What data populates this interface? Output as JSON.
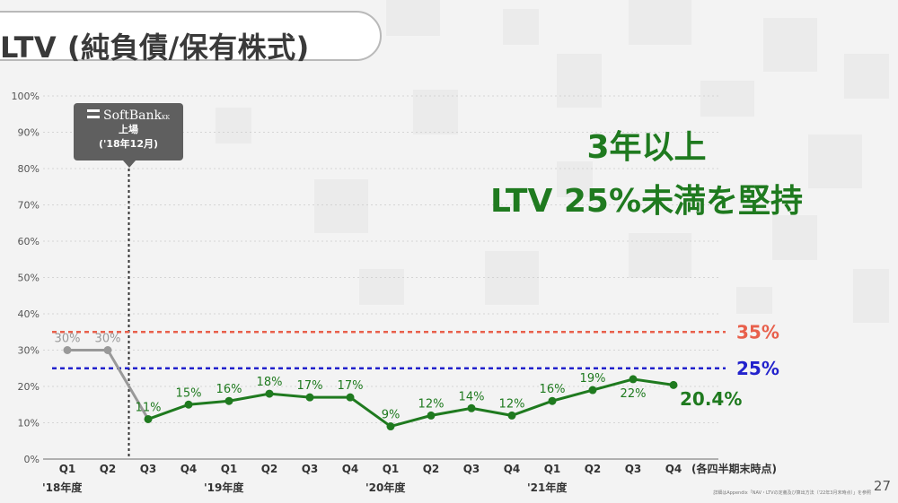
{
  "title": "LTV (純負債/保有株式)",
  "headline": {
    "line1": "3年以上",
    "line2": "LTV 25%未満を堅持"
  },
  "callout": {
    "logo": "SoftBank",
    "logo_suffix": "KK",
    "line1": "上場",
    "line2": "('18年12月)"
  },
  "page_number": "27",
  "footnote": "詳細はAppendix「NAV・LTVの定義及び算出方法（'22年3月末時点）」を参照",
  "colors": {
    "series": "#1f7a1f",
    "pre_listing": "#999999",
    "ref35": "#e8604c",
    "ref25": "#2222cc",
    "grid": "#cccccc",
    "axis": "#444444"
  },
  "chart_data": {
    "type": "line",
    "y_axis": {
      "ticks": [
        "0%",
        "10%",
        "20%",
        "30%",
        "40%",
        "50%",
        "60%",
        "70%",
        "80%",
        "90%",
        "100%"
      ],
      "ylim": [
        0,
        100
      ],
      "grid": true
    },
    "categories": [
      "Q1",
      "Q2",
      "Q3",
      "Q4",
      "Q1",
      "Q2",
      "Q3",
      "Q4",
      "Q1",
      "Q2",
      "Q3",
      "Q4",
      "Q1",
      "Q2",
      "Q3",
      "Q4"
    ],
    "category_suffix": "(各四半期末時点)",
    "year_labels": [
      {
        "label": "'18年度",
        "start_index": 0
      },
      {
        "label": "'19年度",
        "start_index": 4
      },
      {
        "label": "'20年度",
        "start_index": 8
      },
      {
        "label": "'21年度",
        "start_index": 12
      }
    ],
    "series": [
      {
        "values": [
          30,
          30,
          11,
          15,
          16,
          18,
          17,
          17,
          9,
          12,
          14,
          12,
          16,
          19,
          22,
          20.4
        ],
        "labels": [
          "30%",
          "30%",
          "11%",
          "15%",
          "16%",
          "18%",
          "17%",
          "17%",
          "9%",
          "12%",
          "14%",
          "12%",
          "16%",
          "19%",
          "22%",
          ""
        ]
      }
    ],
    "final_label": "20.4%",
    "reference_lines": [
      {
        "value": 35,
        "label": "35%"
      },
      {
        "value": 25,
        "label": "25%"
      }
    ],
    "listing_marker_after_index": 1
  }
}
